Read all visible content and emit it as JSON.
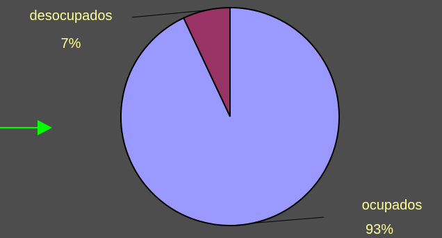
{
  "chart_data": {
    "type": "pie",
    "title": "",
    "slices": [
      {
        "label": "desocupados",
        "value": 7,
        "display": "7%",
        "color": "#993366"
      },
      {
        "label": "ocupados",
        "value": 93,
        "display": "93%",
        "color": "#9999ff"
      }
    ],
    "legend": "none",
    "background_color": "#4d4d4d",
    "label_color": "#ffff99",
    "arrow_color": "#00ff00",
    "start_angle_deg": 0,
    "direction": "counterclockwise"
  }
}
